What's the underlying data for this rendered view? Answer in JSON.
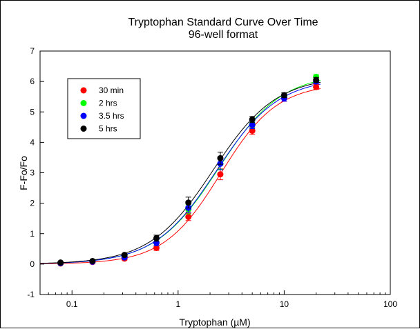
{
  "chart_data": {
    "type": "scatter",
    "title": "Tryptophan Standard Curve Over Time",
    "subtitle": "96-well format",
    "xlabel": "Tryptophan (µM)",
    "ylabel": "F-Fo/Fo",
    "x_scale": "log",
    "xlim": [
      0.05,
      100
    ],
    "ylim": [
      -1,
      7
    ],
    "xticks": [
      0.1,
      1,
      10,
      100
    ],
    "xtick_labels": [
      "0.1",
      "1",
      "10",
      "100"
    ],
    "yticks": [
      -1,
      0,
      1,
      2,
      3,
      4,
      5,
      6,
      7
    ],
    "ytick_labels": [
      "-1",
      "0",
      "1",
      "2",
      "3",
      "4",
      "5",
      "6",
      "7"
    ],
    "grid": false,
    "legend_position": "top-left",
    "x": [
      0.078,
      0.156,
      0.3125,
      0.625,
      1.25,
      2.5,
      5,
      10,
      20
    ],
    "series": [
      {
        "name": "30 min",
        "color": "#ff0000",
        "values": [
          0.02,
          0.07,
          0.18,
          0.53,
          1.55,
          2.95,
          4.38,
          5.45,
          5.82
        ],
        "errors": [
          0.03,
          0.03,
          0.05,
          0.08,
          0.12,
          0.18,
          0.12,
          0.1,
          0.08
        ]
      },
      {
        "name": "2 hrs",
        "color": "#00ff00",
        "values": [
          0.04,
          0.09,
          0.25,
          0.7,
          1.8,
          3.3,
          4.6,
          5.52,
          6.15
        ],
        "errors": [
          0.03,
          0.03,
          0.05,
          0.1,
          0.15,
          0.18,
          0.12,
          0.1,
          0.08
        ]
      },
      {
        "name": "3.5 hrs",
        "color": "#0000ff",
        "values": [
          0.03,
          0.08,
          0.22,
          0.7,
          1.85,
          3.3,
          4.57,
          5.45,
          6.0
        ],
        "errors": [
          0.03,
          0.03,
          0.05,
          0.1,
          0.15,
          0.2,
          0.12,
          0.1,
          0.08
        ]
      },
      {
        "name": "5 hrs",
        "color": "#000000",
        "values": [
          0.05,
          0.1,
          0.3,
          0.85,
          2.02,
          3.48,
          4.75,
          5.55,
          6.05
        ],
        "errors": [
          0.03,
          0.03,
          0.05,
          0.1,
          0.18,
          0.2,
          0.1,
          0.08,
          0.08
        ]
      }
    ]
  }
}
